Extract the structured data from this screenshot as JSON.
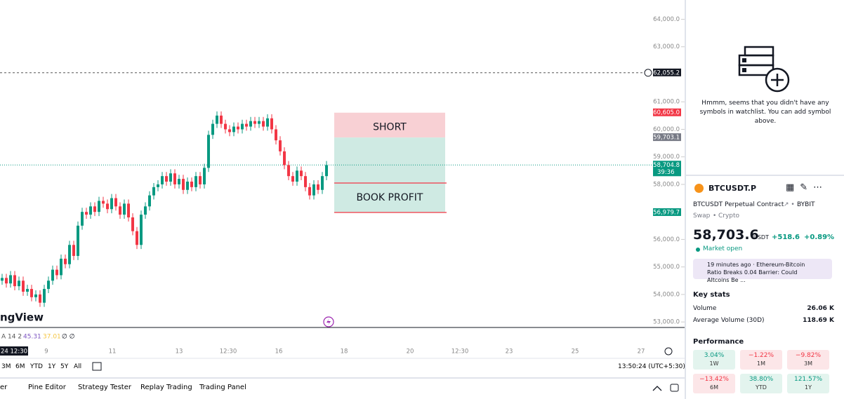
{
  "chart": {
    "price_ticks": [
      {
        "value": 64000,
        "label": "64,000.0"
      },
      {
        "value": 63000,
        "label": "63,000.0"
      },
      {
        "value": 61000,
        "label": "61,000.0"
      },
      {
        "value": 60000,
        "label": "60,000.0"
      },
      {
        "value": 59000,
        "label": "59,000.0"
      },
      {
        "value": 58000,
        "label": "58,000.0"
      },
      {
        "value": 56000,
        "label": "56,000.0"
      },
      {
        "value": 55000,
        "label": "55,000.0"
      },
      {
        "value": 54000,
        "label": "54,000.0"
      },
      {
        "value": 53000,
        "label": "53,000.0"
      }
    ],
    "ylim": [
      52800,
      64700
    ],
    "price_tags": [
      {
        "value": 62055.2,
        "label": "62,055.2",
        "color": "#131722"
      },
      {
        "value": 60605.0,
        "label": "60,605.0",
        "color": "#f23645"
      },
      {
        "value": 59703.1,
        "label": "59,703.1",
        "color": "#787b86"
      },
      {
        "value": 58704.8,
        "label": "58,704.8",
        "color": "#089981"
      },
      {
        "value": 56979.7,
        "label": "56,979.7",
        "color": "#089981"
      }
    ],
    "countdown": "39:36",
    "target_line": 58050,
    "short_label": "SHORT",
    "profit_label": "BOOK PROFIT",
    "logo": "ngView",
    "indicator": [
      "A 14 2",
      "45.31",
      "37.01",
      "∅ ∅"
    ],
    "cursor_time": "24  12:30",
    "time_labels": [
      "9",
      "11",
      "13",
      "12:30",
      "16",
      "18",
      "20",
      "12:30",
      "23",
      "25",
      "27"
    ],
    "up_color": "#089981",
    "down_color": "#f23645",
    "ohlc": [
      [
        54500,
        54750,
        54350,
        54600
      ],
      [
        54600,
        54750,
        54250,
        54400
      ],
      [
        54400,
        54850,
        54250,
        54700
      ],
      [
        54700,
        54850,
        54150,
        54300
      ],
      [
        54300,
        54650,
        54150,
        54500
      ],
      [
        54500,
        54650,
        53950,
        54100
      ],
      [
        54100,
        54350,
        53950,
        54200
      ],
      [
        54200,
        54350,
        53750,
        53900
      ],
      [
        53900,
        54150,
        53750,
        54000
      ],
      [
        54000,
        54150,
        53550,
        53700
      ],
      [
        53700,
        54350,
        53550,
        54200
      ],
      [
        54200,
        54650,
        54050,
        54500
      ],
      [
        54500,
        55050,
        54350,
        54900
      ],
      [
        54900,
        55050,
        54550,
        54700
      ],
      [
        54700,
        55450,
        54550,
        55300
      ],
      [
        55300,
        55450,
        54950,
        55100
      ],
      [
        55100,
        55950,
        54950,
        55800
      ],
      [
        55800,
        55950,
        55250,
        55400
      ],
      [
        55400,
        56650,
        55250,
        56500
      ],
      [
        56500,
        57150,
        56350,
        57000
      ],
      [
        57000,
        57150,
        56750,
        56900
      ],
      [
        56900,
        57350,
        56750,
        57200
      ],
      [
        57200,
        57350,
        56850,
        57000
      ],
      [
        57000,
        57550,
        56850,
        57400
      ],
      [
        57400,
        57550,
        57150,
        57300
      ],
      [
        57300,
        57450,
        56950,
        57100
      ],
      [
        57100,
        57650,
        56950,
        57500
      ],
      [
        57500,
        57650,
        57050,
        57200
      ],
      [
        57200,
        57350,
        56750,
        56900
      ],
      [
        56900,
        57450,
        56750,
        57300
      ],
      [
        57300,
        57450,
        56650,
        56800
      ],
      [
        56800,
        56950,
        56150,
        56300
      ],
      [
        56300,
        56450,
        55650,
        55800
      ],
      [
        55800,
        57050,
        55650,
        56900
      ],
      [
        56900,
        57350,
        56750,
        57200
      ],
      [
        57200,
        57750,
        57050,
        57600
      ],
      [
        57600,
        58050,
        57450,
        57900
      ],
      [
        57900,
        58150,
        57750,
        58000
      ],
      [
        58000,
        58450,
        57850,
        58300
      ],
      [
        58300,
        58450,
        57950,
        58100
      ],
      [
        58100,
        58550,
        57950,
        58400
      ],
      [
        58400,
        58550,
        57850,
        58000
      ],
      [
        58000,
        58350,
        57850,
        58200
      ],
      [
        58200,
        58350,
        57650,
        57800
      ],
      [
        57800,
        58250,
        57650,
        58100
      ],
      [
        58100,
        58250,
        57750,
        57900
      ],
      [
        57900,
        58450,
        57750,
        58300
      ],
      [
        58300,
        58450,
        57850,
        58000
      ],
      [
        58000,
        58750,
        57850,
        58600
      ],
      [
        58600,
        59950,
        58450,
        59800
      ],
      [
        59800,
        60350,
        59650,
        60200
      ],
      [
        60200,
        60650,
        60050,
        60500
      ],
      [
        60500,
        60650,
        60050,
        60200
      ],
      [
        60200,
        60350,
        59850,
        60000
      ],
      [
        60000,
        60150,
        59750,
        59900
      ],
      [
        59900,
        60250,
        59750,
        60100
      ],
      [
        60100,
        60250,
        59850,
        60000
      ],
      [
        60000,
        60350,
        59850,
        60200
      ],
      [
        60200,
        60350,
        59950,
        60100
      ],
      [
        60100,
        60450,
        59950,
        60300
      ],
      [
        60300,
        60450,
        60050,
        60200
      ],
      [
        60200,
        60450,
        60050,
        60300
      ],
      [
        60300,
        60450,
        59950,
        60100
      ],
      [
        60100,
        60550,
        59950,
        60400
      ],
      [
        60400,
        60550,
        59850,
        60000
      ],
      [
        60000,
        60150,
        59450,
        59600
      ],
      [
        59600,
        59750,
        59050,
        59200
      ],
      [
        59200,
        59350,
        58550,
        58700
      ],
      [
        58700,
        58850,
        58150,
        58300
      ],
      [
        58300,
        58450,
        57950,
        58100
      ],
      [
        58100,
        58650,
        57950,
        58500
      ],
      [
        58500,
        58650,
        58150,
        58300
      ],
      [
        58300,
        58450,
        57750,
        57900
      ],
      [
        57900,
        58050,
        57450,
        57600
      ],
      [
        57600,
        58150,
        57450,
        58000
      ],
      [
        58000,
        58150,
        57650,
        57800
      ],
      [
        57800,
        58450,
        57650,
        58300
      ],
      [
        58300,
        58850,
        58150,
        58700
      ]
    ]
  },
  "toolbar": {
    "ranges": [
      "3M",
      "6M",
      "YTD",
      "1Y",
      "5Y",
      "All"
    ],
    "clock": "13:50:24 (UTC+5:30)"
  },
  "tabs": [
    "er",
    "Pine Editor",
    "Strategy Tester",
    "Replay Trading",
    "Trading Panel"
  ],
  "watchlist": {
    "message": "Hmmm, seems that you didn't have any symbols in watchlist. You can add symbol above."
  },
  "symbol": {
    "ticker": "BTCUSDT.P",
    "name": "BTCUSDT Perpetual Contract",
    "exchange": "BYBIT",
    "kind": "Swap",
    "class": "Crypto",
    "price": "58,703.6",
    "currency": "USDT",
    "change": "+518.6",
    "change_pct": "+0.89%",
    "status": "Market open",
    "news": "19 minutes ago · Ethereum-Bitcoin Ratio Breaks 0.04 Barrier: Could Altcoins Be ..."
  },
  "key_stats": {
    "title": "Key stats",
    "rows": [
      [
        "Volume",
        "26.06 K"
      ],
      [
        "Average Volume (30D)",
        "118.69 K"
      ]
    ]
  },
  "performance": {
    "title": "Performance",
    "cells": [
      {
        "value": "3.04%",
        "period": "1W",
        "color": "#089981",
        "bg": "#e3f4ee"
      },
      {
        "value": "−1.22%",
        "period": "1M",
        "color": "#f23645",
        "bg": "#fce6e8"
      },
      {
        "value": "−9.82%",
        "period": "3M",
        "color": "#f23645",
        "bg": "#fce6e8"
      },
      {
        "value": "−13.42%",
        "period": "6M",
        "color": "#f23645",
        "bg": "#fce6e8"
      },
      {
        "value": "38.80%",
        "period": "YTD",
        "color": "#089981",
        "bg": "#e3f4ee"
      },
      {
        "value": "121.57%",
        "period": "1Y",
        "color": "#089981",
        "bg": "#e3f4ee"
      }
    ]
  }
}
